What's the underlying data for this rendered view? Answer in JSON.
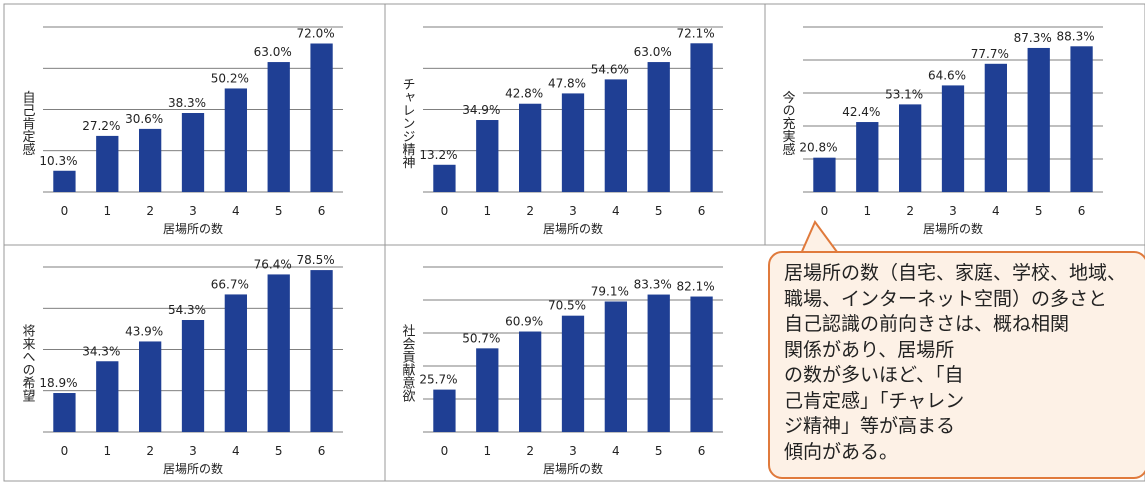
{
  "chart_data": [
    {
      "type": "bar",
      "y_label": "自己肯定感",
      "x_label": "居場所の数",
      "categories": [
        "0",
        "1",
        "2",
        "3",
        "4",
        "5",
        "6"
      ],
      "values": [
        10.3,
        27.2,
        30.6,
        38.3,
        50.2,
        63.0,
        72.0
      ],
      "value_labels": [
        "10.3%",
        "27.2%",
        "30.6%",
        "38.3%",
        "50.2%",
        "63.0%",
        "72.0%"
      ],
      "color": "#1f3f94",
      "ylim": [
        0,
        80
      ],
      "yticks": [
        0,
        20,
        40,
        60,
        80
      ],
      "grid": true
    },
    {
      "type": "bar",
      "y_label": "チャレンジ精神",
      "x_label": "居場所の数",
      "categories": [
        "0",
        "1",
        "2",
        "3",
        "4",
        "5",
        "6"
      ],
      "values": [
        13.2,
        34.9,
        42.8,
        47.8,
        54.6,
        63.0,
        72.1
      ],
      "value_labels": [
        "13.2%",
        "34.9%",
        "42.8%",
        "47.8%",
        "54.6%",
        "63.0%",
        "72.1%"
      ],
      "color": "#1f3f94",
      "ylim": [
        0,
        80
      ],
      "yticks": [
        0,
        20,
        40,
        60,
        80
      ],
      "grid": true
    },
    {
      "type": "bar",
      "y_label": "今の充実感",
      "x_label": "居場所の数",
      "categories": [
        "0",
        "1",
        "2",
        "3",
        "4",
        "5",
        "6"
      ],
      "values": [
        20.8,
        42.4,
        53.1,
        64.6,
        77.7,
        87.3,
        88.3
      ],
      "value_labels": [
        "20.8%",
        "42.4%",
        "53.1%",
        "64.6%",
        "77.7%",
        "87.3%",
        "88.3%"
      ],
      "color": "#1f3f94",
      "ylim": [
        0,
        100
      ],
      "yticks": [
        0,
        20,
        40,
        60,
        80,
        100
      ],
      "grid": true
    },
    {
      "type": "bar",
      "y_label": "将来への希望",
      "x_label": "居場所の数",
      "categories": [
        "0",
        "1",
        "2",
        "3",
        "4",
        "5",
        "6"
      ],
      "values": [
        18.9,
        34.3,
        43.9,
        54.3,
        66.7,
        76.4,
        78.5
      ],
      "value_labels": [
        "18.9%",
        "34.3%",
        "43.9%",
        "54.3%",
        "66.7%",
        "76.4%",
        "78.5%"
      ],
      "color": "#1f3f94",
      "ylim": [
        0,
        80
      ],
      "yticks": [
        0,
        20,
        40,
        60,
        80
      ],
      "grid": true
    },
    {
      "type": "bar",
      "y_label": "社会貢献意欲",
      "x_label": "居場所の数",
      "categories": [
        "0",
        "1",
        "2",
        "3",
        "4",
        "5",
        "6"
      ],
      "values": [
        25.7,
        50.7,
        60.9,
        70.5,
        79.1,
        83.3,
        82.1
      ],
      "value_labels": [
        "25.7%",
        "50.7%",
        "60.9%",
        "70.5%",
        "79.1%",
        "83.3%",
        "82.1%"
      ],
      "color": "#1f3f94",
      "ylim": [
        0,
        100
      ],
      "yticks": [
        0,
        20,
        40,
        60,
        80,
        100
      ],
      "grid": true
    }
  ],
  "callout": {
    "lines": [
      "居場所の数（自宅、家庭、学校、地域、",
      "職場、インターネット空間）の多さと",
      "自己認識の前向きさは、概ね相関",
      "関係があり、居場所",
      "の数が多いほど、「自",
      "己肯定感」「チャレン",
      "ジ精神」等が高まる",
      "傾向がある。"
    ]
  }
}
